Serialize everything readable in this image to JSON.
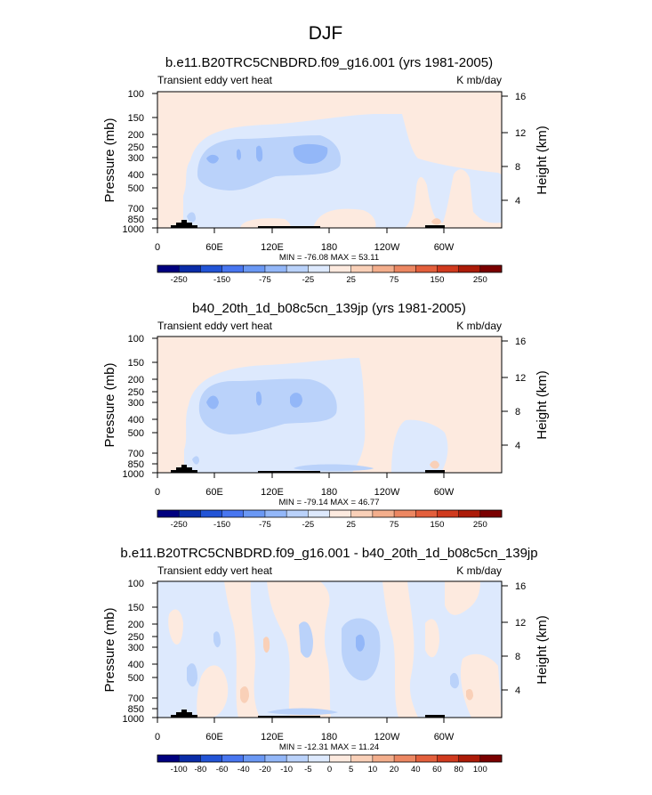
{
  "figure": {
    "title": "DJF"
  },
  "colors": {
    "cb1": [
      "#00007f",
      "#0a2ca8",
      "#2254d6",
      "#4876f0",
      "#6a98f4",
      "#93b7f8",
      "#bad2fa",
      "#dde9fd",
      "#fdeadf",
      "#f9d0b8",
      "#f3ae8c",
      "#ec8762",
      "#e35f3c",
      "#d03a1e",
      "#ac1b08",
      "#7a0000"
    ],
    "cb2": [
      "#00007f",
      "#0a2ca8",
      "#2254d6",
      "#4876f0",
      "#6a98f4",
      "#93b7f8",
      "#bad2fa",
      "#dde9fd",
      "#fdeadf",
      "#f9d0b8",
      "#f3ae8c",
      "#ec8762",
      "#e35f3c",
      "#d03a1e",
      "#ac1b08",
      "#7a0000"
    ],
    "fill_light_blue": "#dde9fd",
    "fill_mid_blue": "#bad2fa",
    "fill_blue": "#93b7f8",
    "fill_dark_blue": "#6a98f4",
    "fill_light_red": "#fdeadf",
    "fill_mid_red": "#f9d0b8",
    "fill_red": "#f3ae8c",
    "topography": "#000000"
  },
  "chart_data": [
    {
      "type": "heatmap",
      "title": "b.e11.B20TRC5CNBDRD.f09_g16.001 (yrs 1981-2005)",
      "left_label": "Transient eddy vert heat",
      "right_label": "K mb/day",
      "ylabel": "Pressure (mb)",
      "y2label": "Height (km)",
      "x_ticks": [
        "0",
        "60E",
        "120E",
        "180",
        "120W",
        "60W"
      ],
      "y_ticks": [
        "100",
        "150",
        "200",
        "250",
        "300",
        "400",
        "500",
        "700",
        "850",
        "1000"
      ],
      "y2_ticks": [
        "16",
        "12",
        "8",
        "4"
      ],
      "stats": "MIN = -76.08  MAX = 53.11",
      "colorbar_labels": [
        "-250",
        "-150",
        "-75",
        "-25",
        "25",
        "75",
        "150",
        "250"
      ],
      "colorbar_levels": [
        -300,
        -250,
        -200,
        -150,
        -100,
        -75,
        -50,
        -25,
        0,
        25,
        50,
        75,
        100,
        150,
        200,
        250,
        300
      ]
    },
    {
      "type": "heatmap",
      "title": "b40_20th_1d_b08c5cn_139jp (yrs 1981-2005)",
      "left_label": "Transient eddy vert heat",
      "right_label": "K mb/day",
      "ylabel": "Pressure (mb)",
      "y2label": "Height (km)",
      "x_ticks": [
        "0",
        "60E",
        "120E",
        "180",
        "120W",
        "60W"
      ],
      "y_ticks": [
        "100",
        "150",
        "200",
        "250",
        "300",
        "400",
        "500",
        "700",
        "850",
        "1000"
      ],
      "y2_ticks": [
        "16",
        "12",
        "8",
        "4"
      ],
      "stats": "MIN = -79.14  MAX = 46.77",
      "colorbar_labels": [
        "-250",
        "-150",
        "-75",
        "-25",
        "25",
        "75",
        "150",
        "250"
      ],
      "colorbar_levels": [
        -300,
        -250,
        -200,
        -150,
        -100,
        -75,
        -50,
        -25,
        0,
        25,
        50,
        75,
        100,
        150,
        200,
        250,
        300
      ]
    },
    {
      "type": "heatmap",
      "title": "b.e11.B20TRC5CNBDRD.f09_g16.001 - b40_20th_1d_b08c5cn_139jp",
      "left_label": "Transient eddy vert heat",
      "right_label": "K mb/day",
      "ylabel": "Pressure (mb)",
      "y2label": "Height (km)",
      "x_ticks": [
        "0",
        "60E",
        "120E",
        "180",
        "120W",
        "60W"
      ],
      "y_ticks": [
        "100",
        "150",
        "200",
        "250",
        "300",
        "400",
        "500",
        "700",
        "850",
        "1000"
      ],
      "y2_ticks": [
        "16",
        "12",
        "8",
        "4"
      ],
      "stats": "MIN = -12.31  MAX = 11.24",
      "colorbar_labels": [
        "-100",
        "-80",
        "-60",
        "-40",
        "-20",
        "-10",
        "-5",
        "0",
        "5",
        "10",
        "20",
        "40",
        "60",
        "80",
        "100"
      ],
      "colorbar_levels": [
        -120,
        -100,
        -80,
        -60,
        -40,
        -20,
        -10,
        -5,
        0,
        5,
        10,
        20,
        40,
        60,
        80,
        100,
        120
      ]
    }
  ]
}
